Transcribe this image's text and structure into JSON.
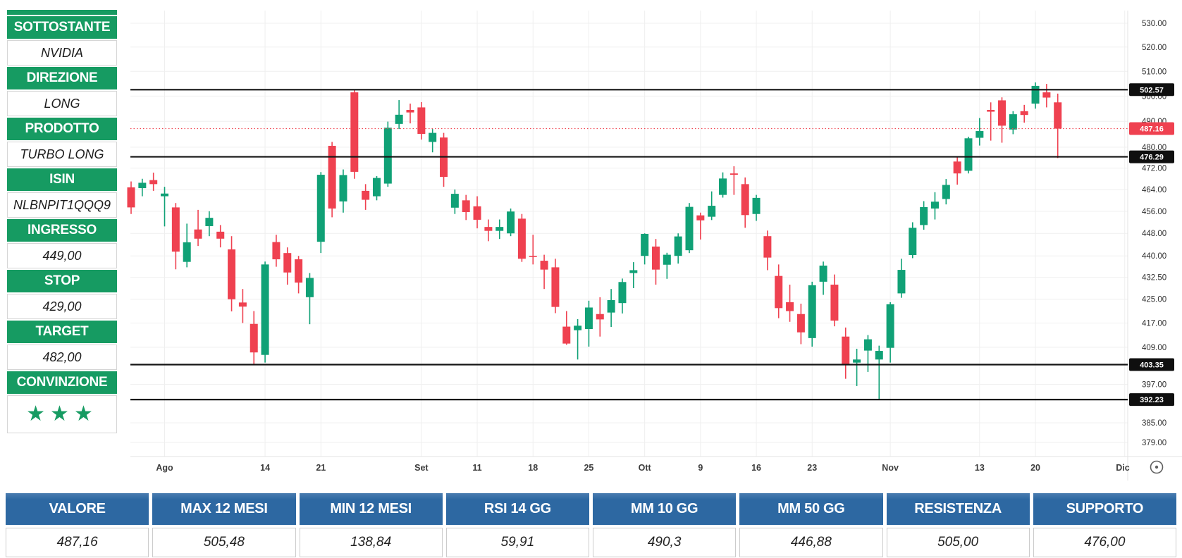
{
  "colors": {
    "panel_green": "#169b62",
    "table_blue": "#2d68a2",
    "candle_up": "#10a176",
    "candle_down": "#ef4150",
    "level_line": "#141414",
    "current_price_line": "#f0434f",
    "badge_black": "#0f0f0f"
  },
  "sidebar": {
    "rows": [
      {
        "label": "SOTTOSTANTE",
        "value": "NVIDIA"
      },
      {
        "label": "DIREZIONE",
        "value": "LONG"
      },
      {
        "label": "PRODOTTO",
        "value": "TURBO LONG"
      },
      {
        "label": "ISIN",
        "value": "NLBNPIT1QQQ9"
      },
      {
        "label": "INGRESSO",
        "value": "449,00"
      },
      {
        "label": "STOP",
        "value": "429,00"
      },
      {
        "label": "TARGET",
        "value": "482,00"
      },
      {
        "label": "CONVINZIONE",
        "value": "★★★"
      }
    ],
    "stars": 3,
    "stars_text": "★★★"
  },
  "summary_table": {
    "columns": [
      {
        "label": "VALORE",
        "value": "487,16"
      },
      {
        "label": "MAX 12 MESI",
        "value": "505,48"
      },
      {
        "label": "MIN 12 MESI",
        "value": "138,84"
      },
      {
        "label": "RSI 14 GG",
        "value": "59,91"
      },
      {
        "label": "MM 10 GG",
        "value": "490,3"
      },
      {
        "label": "MM 50 GG",
        "value": "446,88"
      },
      {
        "label": "RESISTENZA",
        "value": "505,00"
      },
      {
        "label": "SUPPORTO",
        "value": "476,00"
      }
    ]
  },
  "chart_data": {
    "type": "candlestick",
    "symbol": "NVIDIA",
    "timeframe": "daily",
    "current_price": 487.16,
    "price_levels": [
      502.57,
      476.29,
      403.35,
      392.23
    ],
    "y_axis": {
      "scale": "log",
      "top_price": 530,
      "bottom_price": 379,
      "ticks": [
        530,
        520,
        510,
        500,
        490,
        480,
        472,
        464,
        456,
        448,
        440,
        432.5,
        425,
        417,
        409,
        397,
        385,
        379
      ]
    },
    "x_labels": [
      {
        "label": "Ago",
        "index": 3,
        "month": true
      },
      {
        "label": "14",
        "index": 12,
        "month": false
      },
      {
        "label": "21",
        "index": 17,
        "month": false
      },
      {
        "label": "Set",
        "index": 26,
        "month": true
      },
      {
        "label": "11",
        "index": 31,
        "month": false
      },
      {
        "label": "18",
        "index": 36,
        "month": false
      },
      {
        "label": "25",
        "index": 41,
        "month": false
      },
      {
        "label": "Ott",
        "index": 46,
        "month": true
      },
      {
        "label": "9",
        "index": 51,
        "month": false
      },
      {
        "label": "16",
        "index": 56,
        "month": false
      },
      {
        "label": "23",
        "index": 61,
        "month": false
      },
      {
        "label": "Nov",
        "index": 68,
        "month": true
      },
      {
        "label": "13",
        "index": 76,
        "month": false
      },
      {
        "label": "20",
        "index": 81,
        "month": false
      },
      {
        "label": "Dic",
        "index": 89,
        "month": true
      }
    ],
    "candles": [
      [
        464.8,
        467.0,
        455.0,
        457.4
      ],
      [
        464.5,
        468.0,
        461.5,
        466.5
      ],
      [
        467.5,
        470.3,
        463.5,
        466.0
      ],
      [
        461.5,
        465.0,
        450.5,
        462.5
      ],
      [
        457.4,
        459.0,
        435.3,
        441.5
      ],
      [
        437.9,
        451.5,
        436.0,
        444.8
      ],
      [
        449.4,
        456.5,
        443.5,
        446.1
      ],
      [
        450.6,
        456.0,
        447.0,
        453.6
      ],
      [
        448.6,
        451.0,
        443.0,
        446.1
      ],
      [
        442.3,
        447.0,
        420.9,
        425.0
      ],
      [
        423.9,
        428.5,
        417.0,
        422.5
      ],
      [
        416.7,
        421.0,
        403.3,
        407.3
      ],
      [
        406.5,
        438.0,
        404.0,
        437.0
      ],
      [
        444.9,
        447.5,
        436.2,
        438.8
      ],
      [
        441.0,
        443.0,
        430.0,
        434.2
      ],
      [
        438.8,
        440.0,
        427.0,
        430.7
      ],
      [
        425.7,
        434.0,
        416.6,
        432.3
      ],
      [
        445.0,
        470.5,
        441.0,
        469.5
      ],
      [
        480.5,
        482.0,
        453.8,
        457.0
      ],
      [
        459.6,
        471.5,
        455.5,
        469.4
      ],
      [
        501.5,
        502.7,
        468.0,
        470.6
      ],
      [
        463.5,
        466.0,
        456.5,
        460.2
      ],
      [
        461.5,
        469.0,
        460.0,
        468.3
      ],
      [
        466.2,
        489.9,
        465.0,
        487.5
      ],
      [
        489.0,
        498.4,
        487.0,
        492.6
      ],
      [
        494.5,
        497.0,
        489.2,
        493.5
      ],
      [
        495.5,
        497.6,
        482.9,
        485.1
      ],
      [
        482.0,
        487.0,
        478.0,
        485.5
      ],
      [
        483.7,
        485.5,
        465.0,
        468.7
      ],
      [
        457.3,
        464.0,
        455.0,
        462.4
      ],
      [
        460.0,
        462.0,
        452.8,
        455.7
      ],
      [
        457.8,
        461.5,
        449.8,
        452.9
      ],
      [
        450.3,
        453.0,
        445.2,
        448.9
      ],
      [
        448.9,
        453.0,
        446.0,
        450.3
      ],
      [
        448.0,
        457.0,
        447.0,
        455.9
      ],
      [
        453.3,
        455.0,
        437.9,
        439.0
      ],
      [
        440.0,
        447.5,
        437.0,
        439.7
      ],
      [
        438.3,
        440.4,
        428.5,
        435.2
      ],
      [
        436.0,
        439.0,
        420.3,
        422.4
      ],
      [
        415.8,
        421.0,
        409.8,
        410.2
      ],
      [
        414.6,
        418.3,
        405.0,
        416.1
      ],
      [
        415.0,
        424.5,
        409.2,
        422.2
      ],
      [
        420.0,
        425.7,
        412.5,
        418.2
      ],
      [
        420.5,
        428.5,
        415.7,
        424.7
      ],
      [
        423.7,
        432.1,
        420.2,
        430.9
      ],
      [
        434.0,
        437.8,
        428.8,
        435.0
      ],
      [
        440.0,
        448.0,
        437.0,
        447.8
      ],
      [
        443.3,
        446.0,
        430.0,
        435.2
      ],
      [
        436.9,
        441.1,
        432.0,
        440.4
      ],
      [
        440.0,
        448.0,
        437.3,
        446.9
      ],
      [
        442.0,
        459.0,
        441.0,
        457.6
      ],
      [
        454.5,
        455.5,
        445.8,
        452.7
      ],
      [
        454.0,
        463.3,
        452.8,
        458.0
      ],
      [
        462.0,
        470.4,
        461.0,
        468.1
      ],
      [
        470.0,
        472.7,
        462.0,
        469.5
      ],
      [
        466.0,
        468.5,
        450.0,
        454.6
      ],
      [
        455.0,
        462.0,
        452.5,
        460.9
      ],
      [
        447.0,
        449.0,
        435.0,
        439.4
      ],
      [
        433.0,
        437.0,
        418.6,
        422.0
      ],
      [
        424.0,
        430.0,
        417.4,
        421.0
      ],
      [
        420.0,
        423.5,
        410.0,
        413.9
      ],
      [
        412.0,
        431.0,
        409.2,
        429.8
      ],
      [
        431.0,
        438.0,
        426.5,
        436.6
      ],
      [
        430.0,
        433.5,
        415.9,
        417.8
      ],
      [
        412.5,
        415.5,
        398.8,
        403.3
      ],
      [
        404.0,
        408.5,
        396.5,
        405.0
      ],
      [
        407.9,
        413.0,
        401.0,
        411.6
      ],
      [
        405.0,
        409.5,
        392.3,
        407.8
      ],
      [
        408.8,
        424.0,
        404.0,
        423.3
      ],
      [
        427.0,
        439.0,
        425.5,
        435.1
      ],
      [
        440.3,
        452.0,
        439.2,
        450.0
      ],
      [
        451.0,
        459.7,
        449.3,
        457.5
      ],
      [
        457.0,
        463.0,
        453.0,
        459.5
      ],
      [
        460.5,
        467.9,
        458.5,
        465.7
      ],
      [
        474.5,
        476.5,
        465.8,
        470.0
      ],
      [
        471.0,
        484.0,
        470.0,
        483.4
      ],
      [
        483.6,
        491.3,
        480.6,
        486.2
      ],
      [
        494.5,
        497.5,
        482.5,
        493.8
      ],
      [
        498.3,
        499.5,
        481.7,
        488.3
      ],
      [
        486.8,
        494.0,
        485.0,
        492.8
      ],
      [
        494.0,
        496.5,
        489.5,
        492.5
      ],
      [
        497.0,
        505.5,
        495.0,
        504.1
      ],
      [
        501.5,
        504.9,
        495.5,
        499.4
      ],
      [
        497.5,
        501.0,
        475.8,
        487.16
      ]
    ]
  }
}
